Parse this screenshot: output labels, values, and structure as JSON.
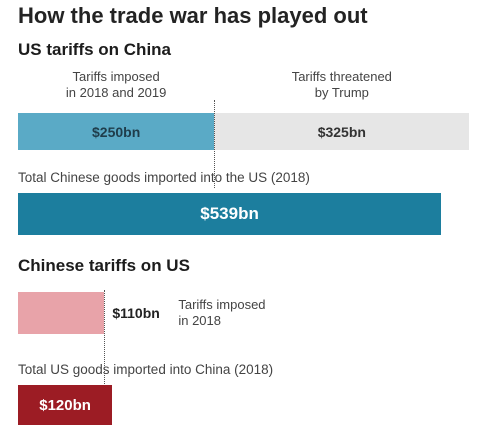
{
  "title": "How the trade war has played out",
  "chart_data": [
    {
      "type": "bar",
      "orientation": "horizontal",
      "stacked": true,
      "title": "US tariffs on China",
      "segments": [
        {
          "name": "Tariffs imposed\nin 2018 and 2019",
          "value": 250,
          "label": "$250bn",
          "color": "#5aaac6"
        },
        {
          "name": "Tariffs threatened\nby Trump",
          "value": 325,
          "label": "$325bn",
          "color": "#e6e6e6"
        }
      ],
      "total": {
        "name": "Total Chinese goods imported into the US (2018)",
        "value": 539,
        "label": "$539bn",
        "color": "#1c7e9e"
      }
    },
    {
      "type": "bar",
      "orientation": "horizontal",
      "stacked": false,
      "title": "Chinese tariffs on US",
      "bars": [
        {
          "name": "Tariffs imposed\nin 2018",
          "value": 110,
          "label": "$110bn",
          "color": "#e8a3a9"
        },
        {
          "name": "Total US goods imported into China (2018)",
          "value": 120,
          "label": "$120bn",
          "color": "#9c1c24"
        }
      ]
    }
  ]
}
